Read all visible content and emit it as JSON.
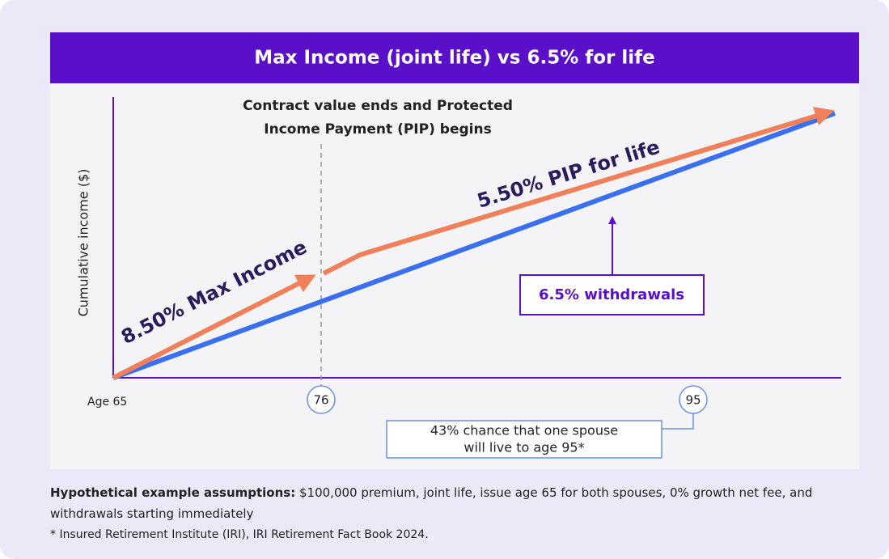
{
  "header": {
    "title": "Max Income (joint life) vs 6.5% for life"
  },
  "chart": {
    "annotation": [
      "Contract value ends and Protected",
      "Income Payment (PIP) begins"
    ],
    "y_axis_label": "Cumulative income ($)",
    "x_labels": [
      "Age 65",
      "76",
      "95"
    ],
    "line_labels": {
      "max_income": "8.50% Max Income",
      "pip": "5.50% PIP for life",
      "withdrawals": "6.5% withdrawals"
    },
    "callout": [
      "43% chance that one spouse",
      "will live to age 95*"
    ]
  },
  "footer": {
    "assumptions_label": "Hypothetical example assumptions:",
    "assumptions_text": "$100,000 premium, joint life, issue age 65 for both spouses, 0% growth net fee, and withdrawals starting immediately",
    "footnote": "* Insured Retirement Institute (IRI), IRI Retirement Fact Book 2024."
  }
}
